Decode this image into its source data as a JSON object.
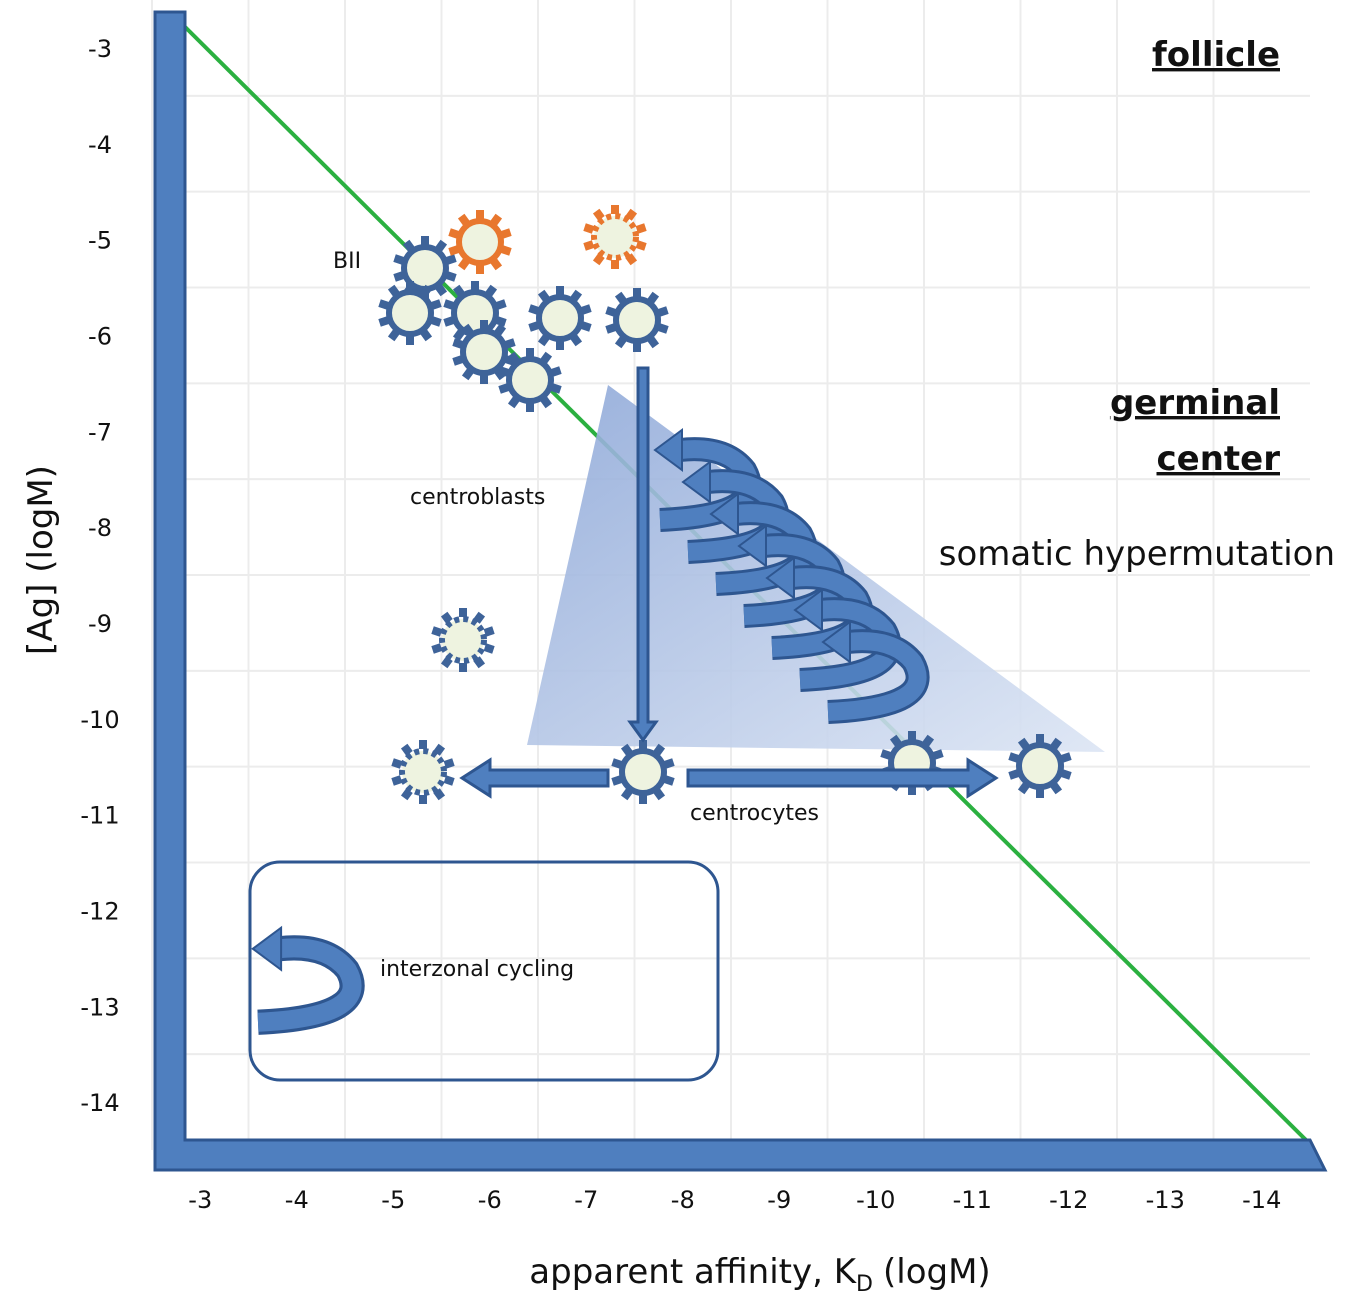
{
  "axes": {
    "xlim": [
      -2.5,
      -14.5
    ],
    "ylim": [
      -2.5,
      -14.5
    ],
    "xticks": [
      -3,
      -4,
      -5,
      -6,
      -7,
      -8,
      -9,
      -10,
      -11,
      -12,
      -13,
      -14
    ],
    "yticks": [
      -3,
      -4,
      -5,
      -6,
      -7,
      -8,
      -9,
      -10,
      -11,
      -12,
      -13,
      -14
    ],
    "x_label": {
      "main": "apparent affinity, K",
      "sub": "D",
      "unit": "(logM)"
    },
    "y_label": "[Ag] (logM)"
  },
  "labels": {
    "follicle": "follicle",
    "germinal_center": [
      "germinal",
      "center"
    ],
    "somatic_hypermutation": "somatic hypermutation",
    "bii": "BII",
    "centroblasts": "centroblasts",
    "centrocytes": "centrocytes",
    "interzonal_cycling": "interzonal cycling"
  }
}
